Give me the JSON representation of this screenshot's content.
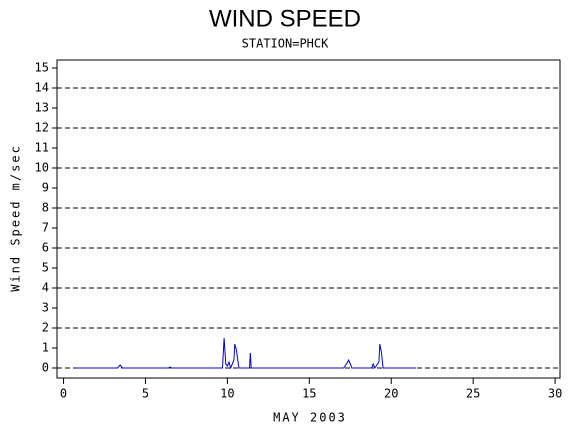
{
  "chart_data": {
    "type": "line",
    "title": "WIND SPEED",
    "subtitle": "STATION=PHCK",
    "x_label": "MAY 2003",
    "y_label": "Wind Speed m/sec",
    "x": [
      0.8,
      3.3,
      3.45,
      3.6,
      6.4,
      6.5,
      6.6,
      9.7,
      9.8,
      9.9,
      10.0,
      10.1,
      10.2,
      10.4,
      10.45,
      10.55,
      10.7,
      11.35,
      11.4,
      11.45,
      17.1,
      17.3,
      17.4,
      17.6,
      18.8,
      18.9,
      19.0,
      19.25,
      19.3,
      19.4,
      19.5,
      21.5
    ],
    "series": [
      {
        "name": "Wind Speed",
        "color": "#0000cc",
        "values": [
          0,
          0,
          0.15,
          0,
          0,
          0.05,
          0,
          0,
          1.5,
          0.2,
          0.1,
          0.3,
          0,
          0.4,
          1.2,
          0.9,
          0,
          0,
          0.75,
          0,
          0,
          0.25,
          0.4,
          0,
          0,
          0.2,
          0,
          0.3,
          1.2,
          0.8,
          0,
          0
        ]
      }
    ],
    "xlim": [
      -0.4,
      30.3
    ],
    "xticks": [
      0,
      5,
      10,
      15,
      20,
      25,
      30
    ],
    "ylim": [
      -0.5,
      15.4
    ],
    "yticks": [
      0,
      1,
      2,
      3,
      4,
      5,
      6,
      7,
      8,
      9,
      10,
      11,
      12,
      13,
      14,
      15
    ],
    "grid_lines": [
      0,
      2,
      4,
      6,
      8,
      10,
      12,
      14
    ]
  }
}
